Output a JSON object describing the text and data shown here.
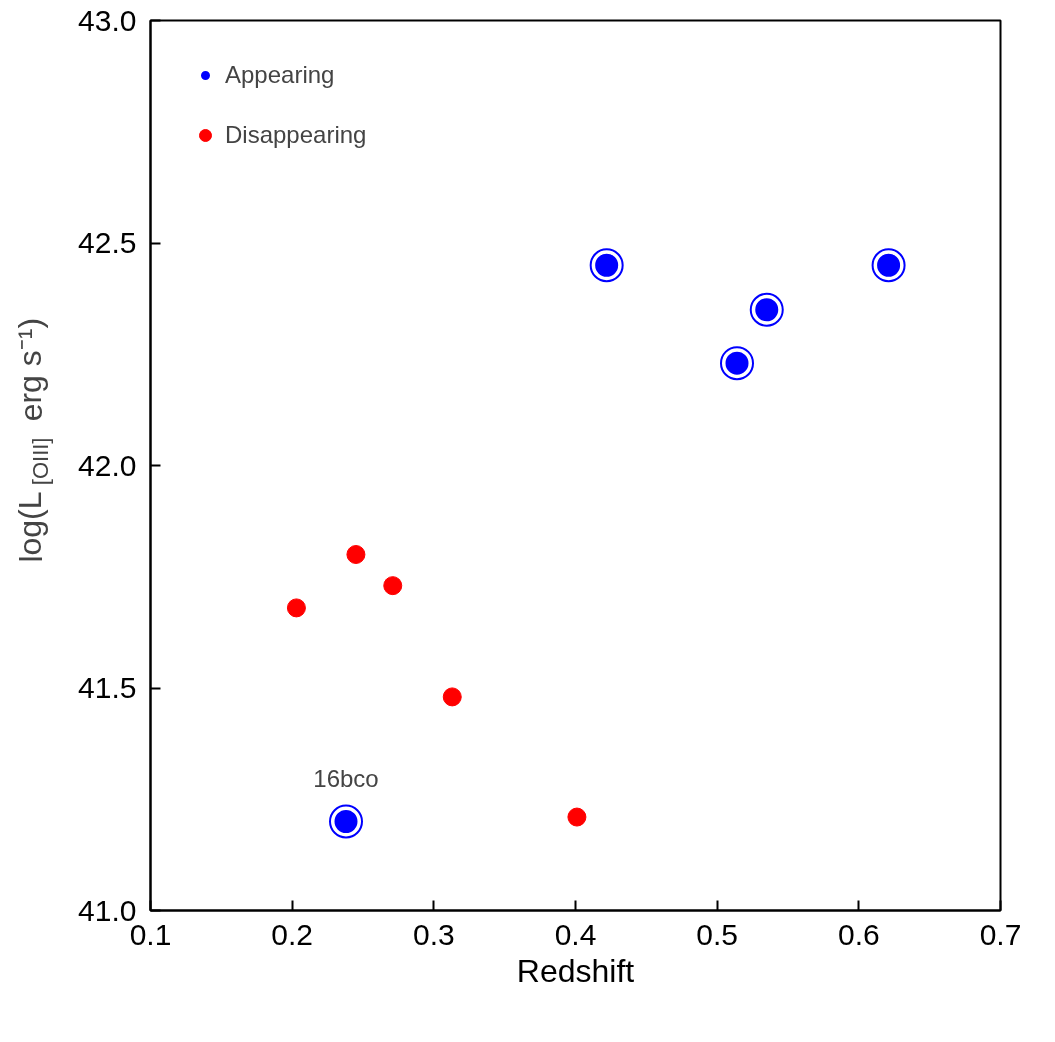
{
  "chart_data": {
    "type": "scatter",
    "xlabel": "Redshift",
    "ylabel": "log(L$_{[OIII]}$ erg s⁻¹)",
    "xlim": [
      0.1,
      0.7
    ],
    "xticks": [
      {
        "value": 0.1,
        "label": "0.1"
      },
      {
        "value": 0.2,
        "label": "0.2"
      },
      {
        "value": 0.3,
        "label": "0.3"
      },
      {
        "value": 0.4,
        "label": "0.4"
      },
      {
        "value": 0.5,
        "label": "0.5"
      },
      {
        "value": 0.6,
        "label": "0.6"
      },
      {
        "value": 0.7,
        "label": "0.7"
      }
    ],
    "ylim": [
      41.0,
      43.0
    ],
    "yticks": [
      {
        "value": 41.0,
        "label": "41.0"
      },
      {
        "value": 41.5,
        "label": "41.5"
      },
      {
        "value": 42.0,
        "label": "42.0"
      },
      {
        "value": 42.5,
        "label": "42.5"
      },
      {
        "value": 43.0,
        "label": "43.0"
      }
    ],
    "marker": "circle",
    "legend": "top left",
    "grid": false,
    "series": [
      {
        "name": "Appearing",
        "color": "#0000ff",
        "x": [
          0.422,
          0.621,
          0.535,
          0.514,
          0.238
        ],
        "values": [
          42.45,
          42.45,
          42.35,
          42.23,
          41.2
        ]
      },
      {
        "name": "Disappearing",
        "color": "#ff0000",
        "x": [
          0.203,
          0.245,
          0.271,
          0.313,
          0.401
        ],
        "values": [
          41.68,
          41.8,
          41.73,
          41.48,
          41.21
        ]
      }
    ],
    "annotations": [
      {
        "text": "16bco",
        "x": 0.238,
        "y": 41.2
      }
    ]
  }
}
